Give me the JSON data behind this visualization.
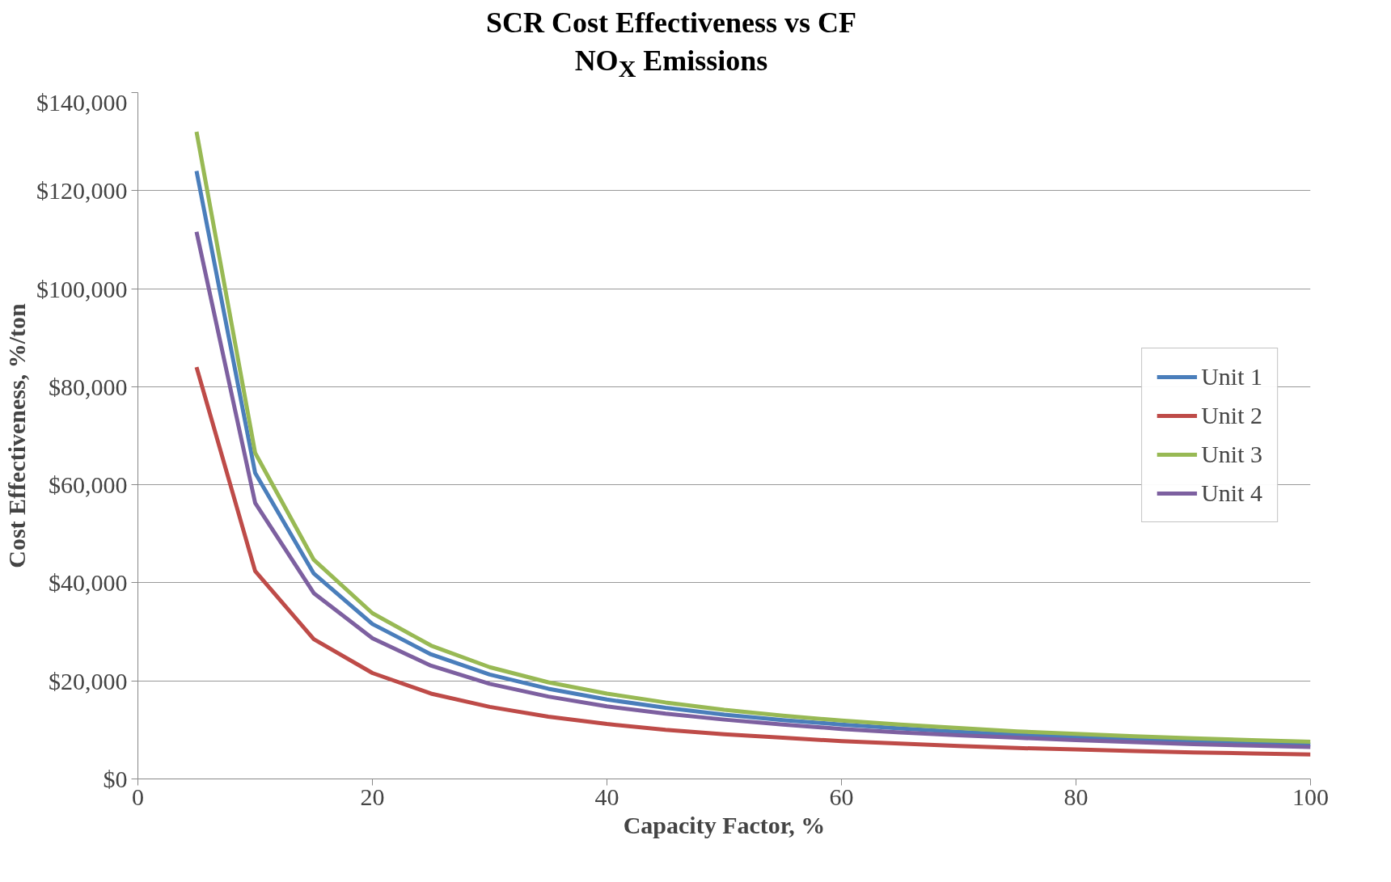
{
  "chart_data": {
    "type": "line",
    "title": "SCR Cost Effectiveness vs CF",
    "subtitle": "NO$_{X}$ Emissions",
    "xlabel": "Capacity Factor, %",
    "ylabel": "Cost Effectiveness, %/ton",
    "x": [
      5,
      10,
      15,
      20,
      25,
      30,
      35,
      40,
      45,
      50,
      55,
      60,
      65,
      70,
      75,
      80,
      85,
      90,
      95,
      100
    ],
    "series": [
      {
        "name": "Unit 1",
        "color": "#4a7ebb",
        "values": [
          124000,
          62400,
          41900,
          31600,
          25400,
          21300,
          18400,
          16200,
          14500,
          13100,
          12000,
          11100,
          10300,
          9600,
          9000,
          8500,
          8000,
          7600,
          7300,
          7000
        ]
      },
      {
        "name": "Unit 2",
        "color": "#be4b48",
        "values": [
          84000,
          42400,
          28500,
          21600,
          17400,
          14700,
          12700,
          11200,
          10000,
          9100,
          8400,
          7700,
          7200,
          6700,
          6300,
          6000,
          5700,
          5400,
          5200,
          5000
        ]
      },
      {
        "name": "Unit 3",
        "color": "#98b954",
        "values": [
          132000,
          66500,
          44700,
          33800,
          27200,
          22800,
          19700,
          17400,
          15600,
          14100,
          12900,
          11900,
          11100,
          10400,
          9700,
          9200,
          8700,
          8300,
          7900,
          7600
        ]
      },
      {
        "name": "Unit 4",
        "color": "#7d60a0",
        "values": [
          111600,
          56300,
          37900,
          28700,
          23100,
          19400,
          16800,
          14800,
          13300,
          12100,
          11100,
          10200,
          9500,
          8900,
          8400,
          7900,
          7500,
          7100,
          6800,
          6500
        ]
      }
    ],
    "xlim": [
      0,
      100
    ],
    "xticks": [
      0,
      20,
      40,
      60,
      80,
      100
    ],
    "ylim": [
      0,
      140000
    ],
    "yticks": [
      {
        "value": 0,
        "label": "$0"
      },
      {
        "value": 20000,
        "label": "$20,000"
      },
      {
        "value": 40000,
        "label": "$40,000"
      },
      {
        "value": 60000,
        "label": "$60,000"
      },
      {
        "value": 80000,
        "label": "$80,000"
      },
      {
        "value": 100000,
        "label": "$100,000"
      },
      {
        "value": 120000,
        "label": "$120,000"
      },
      {
        "value": 140000,
        "label": "$140,000"
      }
    ],
    "grid": "y",
    "legend": "right",
    "marker": "none",
    "line_style": "solid"
  }
}
